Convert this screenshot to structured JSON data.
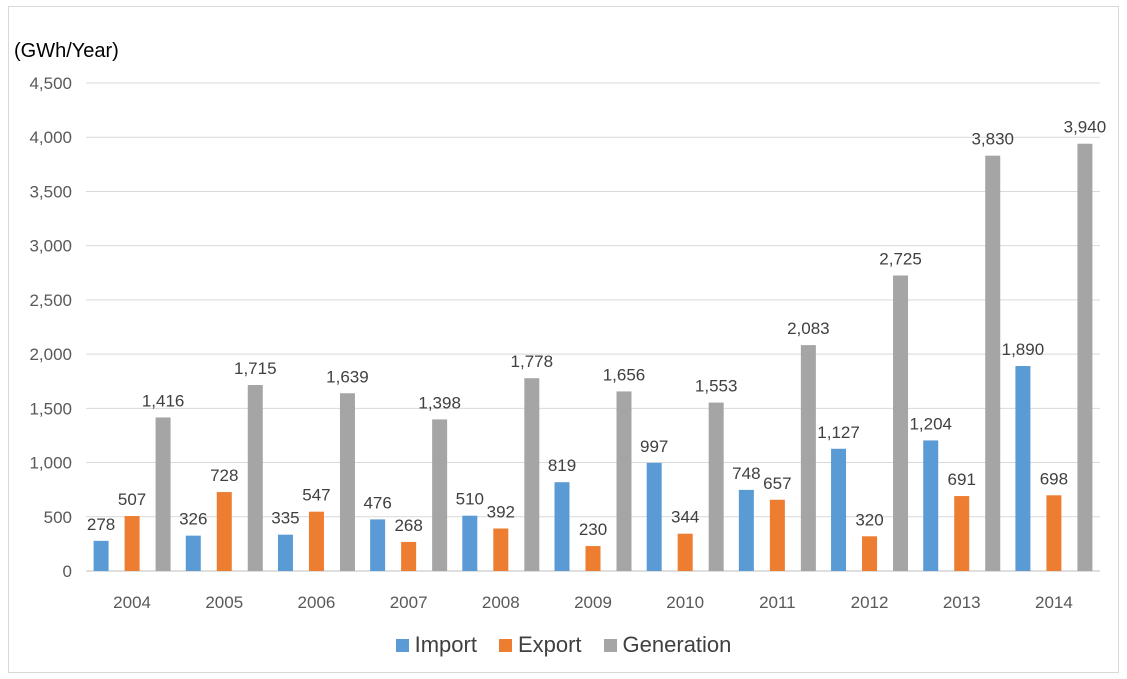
{
  "chart_data": {
    "type": "bar",
    "ylabel": "(GWh/Year)",
    "categories": [
      "2004",
      "2005",
      "2006",
      "2007",
      "2008",
      "2009",
      "2010",
      "2011",
      "2012",
      "2013",
      "2014"
    ],
    "series": [
      {
        "name": "Import",
        "color": "#5b9bd5",
        "values": [
          278,
          326,
          335,
          476,
          510,
          819,
          997,
          748,
          1127,
          1204,
          1890
        ],
        "labels": [
          "278",
          "326",
          "335",
          "476",
          "510",
          "819",
          "997",
          "748",
          "1,127",
          "1,204",
          "1,890"
        ]
      },
      {
        "name": "Export",
        "color": "#ed7d31",
        "values": [
          507,
          728,
          547,
          268,
          392,
          230,
          344,
          657,
          320,
          691,
          698
        ],
        "labels": [
          "507",
          "728",
          "547",
          "268",
          "392",
          "230",
          "344",
          "657",
          "320",
          "691",
          "698"
        ]
      },
      {
        "name": "Generation",
        "color": "#a5a5a5",
        "values": [
          1416,
          1715,
          1639,
          1398,
          1778,
          1656,
          1553,
          2083,
          2725,
          3830,
          3940
        ],
        "labels": [
          "1,416",
          "1,715",
          "1,639",
          "1,398",
          "1,778",
          "1,656",
          "1,553",
          "2,083",
          "2,725",
          "3,830",
          "3,940"
        ]
      }
    ],
    "ylim": [
      0,
      4500
    ],
    "yticks": [
      "0",
      "500",
      "1,000",
      "1,500",
      "2,000",
      "2,500",
      "3,000",
      "3,500",
      "4,000",
      "4,500"
    ],
    "grid": true,
    "legend_position": "bottom"
  }
}
